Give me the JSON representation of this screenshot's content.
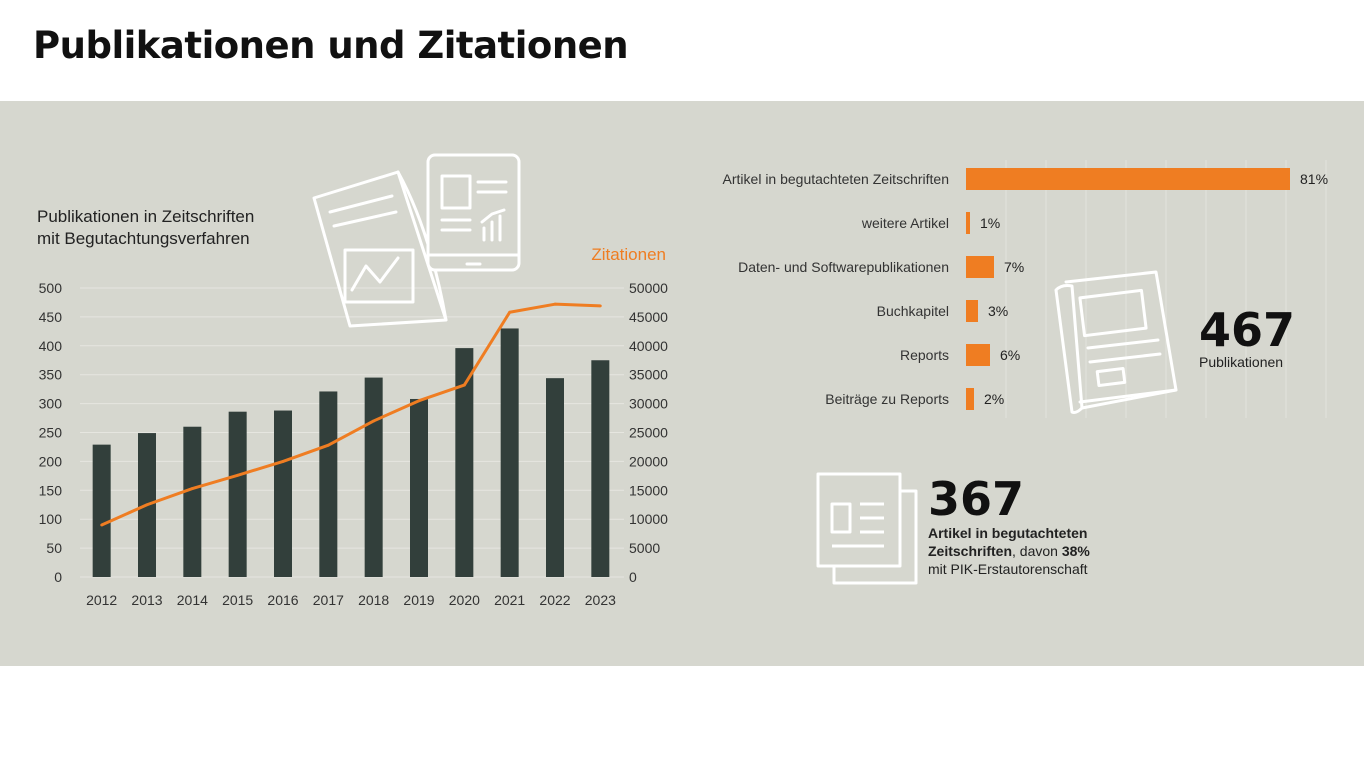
{
  "page": {
    "title": "Publikationen und Zitationen"
  },
  "chart_data": [
    {
      "type": "bar",
      "title": "Publikationen in Zeitschriften\nmit Begutachtungsverfahren",
      "title_lines": [
        "Publikationen in Zeitschriften",
        "mit Begutachtungsverfahren"
      ],
      "categories": [
        "2012",
        "2013",
        "2014",
        "2015",
        "2016",
        "2017",
        "2018",
        "2019",
        "2020",
        "2021",
        "2022",
        "2023"
      ],
      "series": [
        {
          "type": "bar",
          "axis": "left",
          "color": "#323f3b",
          "values": [
            229,
            249,
            260,
            286,
            288,
            321,
            345,
            308,
            396,
            430,
            344,
            375
          ]
        },
        {
          "type": "line",
          "name": "Zitationen",
          "axis": "right",
          "color": "#ef7d22",
          "values": [
            9000,
            12500,
            15300,
            17600,
            20000,
            22800,
            27000,
            30500,
            33200,
            45800,
            47200,
            46900
          ]
        }
      ],
      "ylim": [
        0,
        500
      ],
      "yticks": [
        0,
        50,
        100,
        150,
        200,
        250,
        300,
        350,
        400,
        450,
        500
      ],
      "y2label": "Zitationen",
      "y2lim": [
        0,
        50000
      ],
      "y2ticks": [
        0,
        5000,
        10000,
        15000,
        20000,
        25000,
        30000,
        35000,
        40000,
        45000,
        50000
      ],
      "grid": true
    },
    {
      "type": "bar",
      "orientation": "horizontal",
      "color": "#ef7d22",
      "categories": [
        "Artikel in begutachteten Zeitschriften",
        "weitere Artikel",
        "Daten- und Softwarepublikationen",
        "Buchkapitel",
        "Reports",
        "Beiträge zu Reports"
      ],
      "values": [
        81,
        1,
        7,
        3,
        6,
        2
      ],
      "value_labels": [
        "81%",
        "1%",
        "7%",
        "3%",
        "6%",
        "2%"
      ],
      "xlim": [
        0,
        90
      ],
      "grid": true
    }
  ],
  "stats": {
    "publications": {
      "number": "467",
      "label": "Publikationen"
    },
    "articles": {
      "number": "367",
      "label_bold": "Artikel in begutachteten Zeitschriften",
      "label_sep": ", davon ",
      "share": "38%",
      "label_tail": "mit PIK-Erstautorenschaft"
    }
  },
  "icons": [
    "document-chart-icon",
    "tablet-report-icon",
    "newspaper-icon",
    "article-stack-icon"
  ]
}
